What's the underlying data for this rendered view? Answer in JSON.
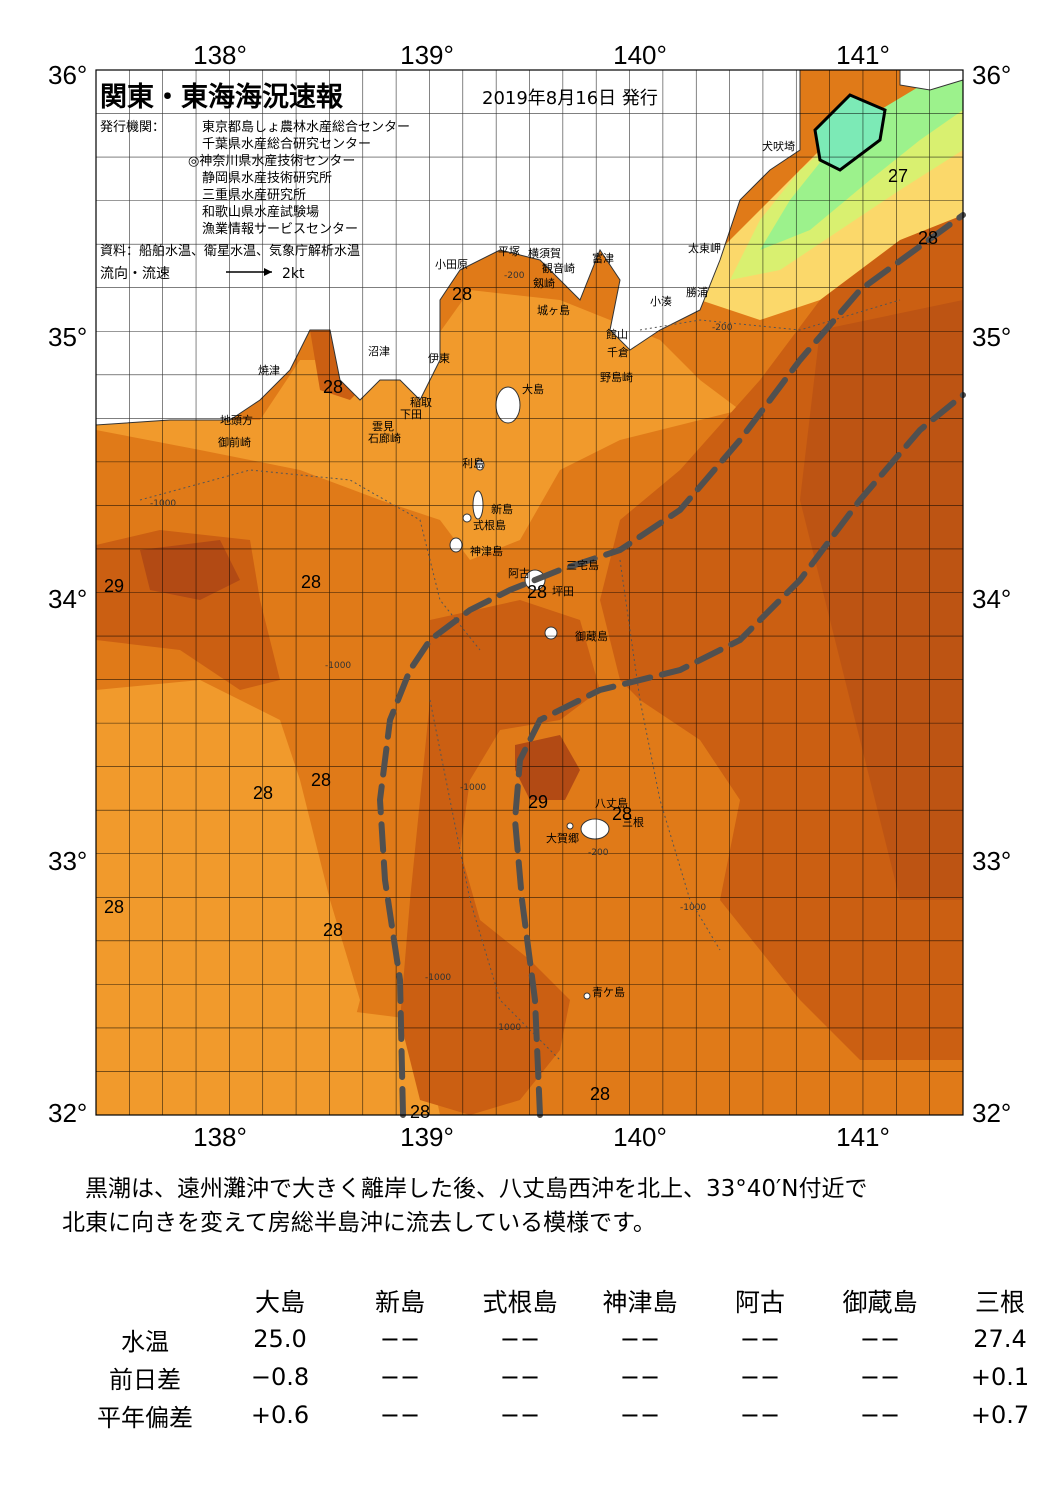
{
  "header": {
    "title": "関東・東海海況速報",
    "issue_date": "2019年8月16日 発行",
    "issuer_label": "発行機関：",
    "issuers": [
      "東京都島しょ農林水産総合センター",
      "千葉県水産総合研究センター",
      "◎神奈川県水産技術センター",
      "静岡県水産技術研究所",
      "三重県水産研究所",
      "和歌山県水産試験場",
      "漁業情報サービスセンター"
    ],
    "sources": "資料：船舶水温、衛星水温、気象庁解析水温",
    "flow_label": "流向・流速",
    "flow_scale": "2kt"
  },
  "axes": {
    "lon_ticks": [
      "138°",
      "139°",
      "140°",
      "141°"
    ],
    "lat_ticks": [
      "36°",
      "35°",
      "34°",
      "33°",
      "32°"
    ]
  },
  "places": [
    "犬吠埼",
    "太東岬",
    "勝浦",
    "小湊",
    "館山",
    "千倉",
    "野島崎",
    "富津",
    "観音崎",
    "横須賀",
    "平塚",
    "小田原",
    "剱崎",
    "城ヶ島",
    "沼津",
    "伊東",
    "稲取",
    "下田",
    "雲見",
    "石廊崎",
    "焼津",
    "地頭方",
    "御前崎",
    "大島",
    "利島",
    "新島",
    "式根島",
    "神津島",
    "三宅島",
    "阿古",
    "坪田",
    "御蔵島",
    "八丈島",
    "三根",
    "大賀郷",
    "青ケ島"
  ],
  "isotherm_labels": [
    "27",
    "28",
    "28",
    "28",
    "28",
    "29",
    "28",
    "28",
    "29",
    "28",
    "28",
    "28",
    "28",
    "28",
    "28"
  ],
  "depth_labels": [
    "-200",
    "-1000"
  ],
  "map_colors": {
    "t29": "#b24a14",
    "t28_5": "#cb5f12",
    "t28": "#e07a18",
    "t27_5": "#f19a2c",
    "t27": "#f9b140",
    "t26": "#fbd86a",
    "t25": "#d9f070",
    "t24": "#9cf28c",
    "t23": "#7ceab6",
    "kuroshio": "#505050"
  },
  "summary": {
    "line1": "　黒潮は、遠州灘沖で大きく離岸した後、八丈島西沖を北上、33°40′N付近で",
    "line2": "北東に向きを変えて房総半島沖に流去している模様です。"
  },
  "table": {
    "columns": [
      "大島",
      "新島",
      "式根島",
      "神津島",
      "阿古",
      "御蔵島",
      "三根"
    ],
    "rows": [
      {
        "label": "水温",
        "values": [
          "25.0",
          "−−",
          "−−",
          "−−",
          "−−",
          "−−",
          "27.4"
        ]
      },
      {
        "label": "前日差",
        "values": [
          "−0.8",
          "−−",
          "−−",
          "−−",
          "−−",
          "−−",
          "+0.1"
        ]
      },
      {
        "label": "平年偏差",
        "values": [
          "+0.6",
          "−−",
          "−−",
          "−−",
          "−−",
          "−−",
          "+0.7"
        ]
      }
    ]
  }
}
